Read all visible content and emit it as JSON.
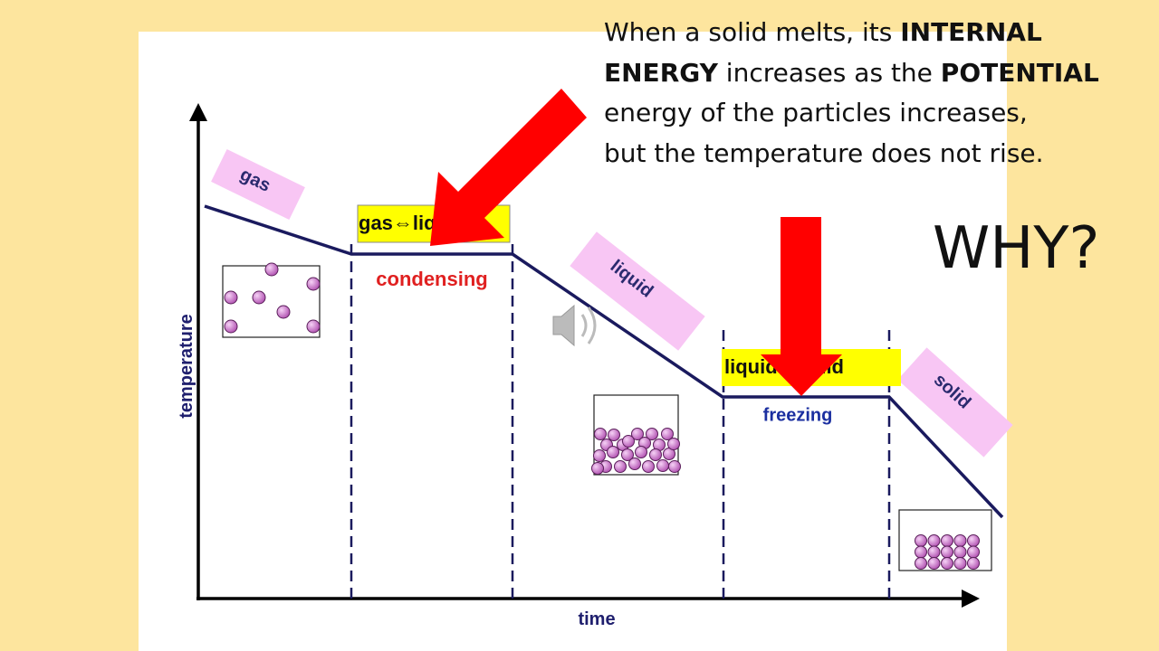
{
  "note": {
    "lines": [
      [
        {
          "text": "When a solid melts, its "
        },
        {
          "text": "INTERNAL",
          "bold": true
        }
      ],
      [
        {
          "text": "ENERGY",
          "bold": true
        },
        {
          "text": " increases as the "
        },
        {
          "text": "POTENTIAL",
          "bold": true
        }
      ],
      [
        {
          "text": "energy of the particles increases,"
        }
      ],
      [
        {
          "text": "but the temperature does not rise."
        }
      ]
    ]
  },
  "question": "WHY?",
  "diagram": {
    "y_axis_label": "temperature",
    "x_axis_label": "time",
    "phases": {
      "gas": "gas",
      "liquid": "liquid",
      "solid": "solid"
    },
    "transitions": [
      {
        "label": "gas⇔liquid",
        "process": "condensing"
      },
      {
        "label": "liquid⇔solid",
        "process": "freezing"
      }
    ]
  }
}
